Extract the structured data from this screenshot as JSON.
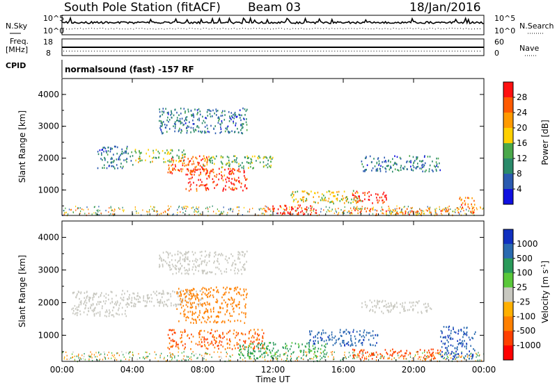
{
  "header": {
    "station": "South Pole Station (fitACF)",
    "beam": "Beam 03",
    "date": "18/Jan/2016"
  },
  "aux_panels": {
    "nsky_label": "N.Sky",
    "nsearch_label": "N.Search",
    "noise_ticks": [
      "10^5",
      "10^0"
    ],
    "freq_label_1": "Freq.",
    "freq_label_2": "[MHz]",
    "freq_ticks": [
      "18",
      "8"
    ],
    "nave_label": "Nave",
    "nave_ticks": [
      "60",
      "0"
    ],
    "cpid_label": "CPID",
    "cpid_text": "normalsound (fast) -157 RF"
  },
  "power_panel": {
    "ylabel": "Slant Range [km]",
    "cbar_label": "Power [dB]",
    "cbar_ticks": [
      "28",
      "24",
      "20",
      "16",
      "12",
      "8",
      "4"
    ],
    "cbar_colors": [
      "#ff1010",
      "#ff5a00",
      "#ff9a00",
      "#ffd000",
      "#4aa84a",
      "#2a8a6a",
      "#2a5ab0",
      "#1010e0"
    ]
  },
  "velocity_panel": {
    "ylabel": "Slant Range [km]",
    "cbar_label": "Velocity [m s",
    "cbar_label_sup": "-1",
    "cbar_label_end": "]",
    "cbar_ticks": [
      "1000",
      "500",
      "100",
      "25",
      "-25",
      "-100",
      "-500",
      "-1000"
    ],
    "cbar_colors": [
      "#1030c0",
      "#2a6ab0",
      "#2a9a5a",
      "#5ac83a",
      "#c8c8c0",
      "#ffb000",
      "#ff8000",
      "#ff4000",
      "#ff0000"
    ]
  },
  "x_axis": {
    "xlabel": "Time UT",
    "ticks": [
      "00:00",
      "04:00",
      "08:00",
      "12:00",
      "16:00",
      "20:00",
      "00:00"
    ]
  },
  "chart_data": [
    {
      "type": "heatmap",
      "title": "South Pole Station (fitACF) Beam 03 18/Jan/2016",
      "xlabel": "Time UT",
      "ylabel": "Slant Range [km]",
      "xlim_hours": [
        0,
        24
      ],
      "ylim_km": [
        200,
        4500
      ],
      "yticks": [
        1000,
        2000,
        3000,
        4000
      ],
      "colorbar": {
        "label": "Power [dB]",
        "range": [
          0,
          30
        ],
        "ticks": [
          4,
          8,
          12,
          16,
          20,
          24,
          28
        ]
      },
      "regions": [
        {
          "t": [
            2.0,
            4.0
          ],
          "range_km": [
            1700,
            2400
          ],
          "value": 6
        },
        {
          "t": [
            4.0,
            7.0
          ],
          "range_km": [
            1900,
            2300
          ],
          "value": 14
        },
        {
          "t": [
            6.0,
            8.5
          ],
          "range_km": [
            1500,
            2100
          ],
          "value": 24
        },
        {
          "t": [
            7.0,
            10.5
          ],
          "range_km": [
            1000,
            1700
          ],
          "value": 26
        },
        {
          "t": [
            8.0,
            12.0
          ],
          "range_km": [
            1700,
            2100
          ],
          "value": 12
        },
        {
          "t": [
            11.5,
            14.5
          ],
          "range_km": [
            250,
            550
          ],
          "value": 28
        },
        {
          "t": [
            13.0,
            17.0
          ],
          "range_km": [
            600,
            1000
          ],
          "value": 16
        },
        {
          "t": [
            16.5,
            18.5
          ],
          "range_km": [
            600,
            1000
          ],
          "value": 26
        },
        {
          "t": [
            16.0,
            22.0
          ],
          "range_km": [
            250,
            450
          ],
          "value": 22
        },
        {
          "t": [
            17.0,
            21.5
          ],
          "range_km": [
            1600,
            2100
          ],
          "value": 6
        },
        {
          "t": [
            5.5,
            10.5
          ],
          "range_km": [
            2800,
            3600
          ],
          "value": 6
        },
        {
          "t": [
            22.5,
            23.5
          ],
          "range_km": [
            300,
            800
          ],
          "value": 22
        }
      ]
    },
    {
      "type": "heatmap",
      "title": "",
      "xlabel": "Time UT",
      "ylabel": "Slant Range [km]",
      "xlim_hours": [
        0,
        24
      ],
      "ylim_km": [
        200,
        4500
      ],
      "yticks": [
        1000,
        2000,
        3000,
        4000
      ],
      "colorbar": {
        "label": "Velocity [m s-1]",
        "ticks": [
          1000,
          500,
          100,
          25,
          -25,
          -100,
          -500,
          -1000
        ]
      },
      "regions": [
        {
          "t": [
            0.5,
            4.0
          ],
          "range_km": [
            1600,
            2400
          ],
          "value": 0
        },
        {
          "t": [
            4.0,
            8.0
          ],
          "range_km": [
            1900,
            2400
          ],
          "value": 0
        },
        {
          "t": [
            6.5,
            10.5
          ],
          "range_km": [
            1400,
            2500
          ],
          "value": -200
        },
        {
          "t": [
            6.0,
            11.5
          ],
          "range_km": [
            600,
            1200
          ],
          "value": -300
        },
        {
          "t": [
            10.0,
            15.0
          ],
          "range_km": [
            300,
            800
          ],
          "value": 80
        },
        {
          "t": [
            14.0,
            18.0
          ],
          "range_km": [
            700,
            1200
          ],
          "value": 600
        },
        {
          "t": [
            16.5,
            21.5
          ],
          "range_km": [
            300,
            600
          ],
          "value": -400
        },
        {
          "t": [
            17.0,
            21.0
          ],
          "range_km": [
            1700,
            2100
          ],
          "value": 0
        },
        {
          "t": [
            21.5,
            23.5
          ],
          "range_km": [
            300,
            1300
          ],
          "value": 700
        },
        {
          "t": [
            5.5,
            10.5
          ],
          "range_km": [
            2900,
            3600
          ],
          "value": 0
        }
      ]
    }
  ]
}
